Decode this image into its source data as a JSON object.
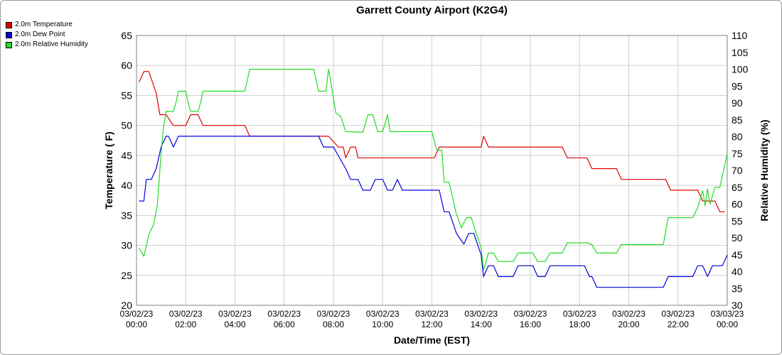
{
  "chart_data": {
    "type": "line",
    "title": "Garrett County Airport (K2G4)",
    "xlabel": "Date/Time (EST)",
    "ylabel_left": "Temperature ( F)",
    "ylabel_right": "Relative Humidity (%)",
    "x_tick_labels": [
      [
        "03/02/23",
        "00:00"
      ],
      [
        "03/02/23",
        "02:00"
      ],
      [
        "03/02/23",
        "04:00"
      ],
      [
        "03/02/23",
        "06:00"
      ],
      [
        "03/02/23",
        "08:00"
      ],
      [
        "03/02/23",
        "10:00"
      ],
      [
        "03/02/23",
        "12:00"
      ],
      [
        "03/02/23",
        "14:00"
      ],
      [
        "03/02/23",
        "16:00"
      ],
      [
        "03/02/23",
        "18:00"
      ],
      [
        "03/02/23",
        "20:00"
      ],
      [
        "03/02/23",
        "22:00"
      ],
      [
        "03/03/23",
        "00:00"
      ]
    ],
    "xlim_hours": [
      0,
      24
    ],
    "ylim_left": [
      20,
      65
    ],
    "yticks_left": [
      20,
      25,
      30,
      35,
      40,
      45,
      50,
      55,
      60,
      65
    ],
    "ylim_right": [
      30,
      110
    ],
    "yticks_right": [
      30,
      35,
      40,
      45,
      50,
      55,
      60,
      65,
      70,
      75,
      80,
      85,
      90,
      95,
      100,
      105,
      110
    ],
    "grid": true,
    "legend_position": "top-left",
    "series": [
      {
        "name": "2.0m Temperature",
        "axis": "left",
        "color": "#e00000",
        "points": [
          [
            0.1,
            57.2
          ],
          [
            0.3,
            59
          ],
          [
            0.5,
            59
          ],
          [
            0.8,
            55.4
          ],
          [
            0.95,
            51.8
          ],
          [
            1.2,
            51.8
          ],
          [
            1.5,
            50
          ],
          [
            2.0,
            50
          ],
          [
            2.2,
            51.8
          ],
          [
            2.5,
            51.8
          ],
          [
            2.7,
            50
          ],
          [
            4.4,
            50
          ],
          [
            4.6,
            48.2
          ],
          [
            7.8,
            48.2
          ],
          [
            8.2,
            46.4
          ],
          [
            8.4,
            46.4
          ],
          [
            8.5,
            44.6
          ],
          [
            8.7,
            46.4
          ],
          [
            8.9,
            46.4
          ],
          [
            9.0,
            44.6
          ],
          [
            12.1,
            44.6
          ],
          [
            12.3,
            46.4
          ],
          [
            14.0,
            46.4
          ],
          [
            14.1,
            48.2
          ],
          [
            14.3,
            46.4
          ],
          [
            17.3,
            46.4
          ],
          [
            17.5,
            44.6
          ],
          [
            18.3,
            44.6
          ],
          [
            18.5,
            42.8
          ],
          [
            19.5,
            42.8
          ],
          [
            19.7,
            41
          ],
          [
            21.5,
            41
          ],
          [
            21.7,
            39.2
          ],
          [
            22.8,
            39.2
          ],
          [
            23.0,
            37.4
          ],
          [
            23.5,
            37.4
          ],
          [
            23.7,
            35.6
          ],
          [
            23.9,
            35.6
          ]
        ]
      },
      {
        "name": "2.0m Dew Point",
        "axis": "left",
        "color": "#0000dd",
        "points": [
          [
            0.1,
            37.4
          ],
          [
            0.3,
            37.4
          ],
          [
            0.4,
            41
          ],
          [
            0.6,
            41
          ],
          [
            0.8,
            42.8
          ],
          [
            1.0,
            46.4
          ],
          [
            1.2,
            48.2
          ],
          [
            1.3,
            48.2
          ],
          [
            1.5,
            46.4
          ],
          [
            1.7,
            48.2
          ],
          [
            7.4,
            48.2
          ],
          [
            7.6,
            46.4
          ],
          [
            8.0,
            46.4
          ],
          [
            8.5,
            42.8
          ],
          [
            8.7,
            41
          ],
          [
            9.0,
            41
          ],
          [
            9.2,
            39.2
          ],
          [
            9.5,
            39.2
          ],
          [
            9.7,
            41
          ],
          [
            10.0,
            41
          ],
          [
            10.2,
            39.2
          ],
          [
            10.4,
            39.2
          ],
          [
            10.6,
            41
          ],
          [
            10.8,
            39.2
          ],
          [
            12.3,
            39.2
          ],
          [
            12.5,
            35.6
          ],
          [
            12.7,
            35.6
          ],
          [
            13.0,
            32
          ],
          [
            13.3,
            30.2
          ],
          [
            13.5,
            32
          ],
          [
            13.7,
            32
          ],
          [
            14.0,
            28.4
          ],
          [
            14.1,
            24.8
          ],
          [
            14.3,
            26.6
          ],
          [
            14.5,
            26.6
          ],
          [
            14.7,
            24.8
          ],
          [
            15.3,
            24.8
          ],
          [
            15.5,
            26.6
          ],
          [
            16.1,
            26.6
          ],
          [
            16.3,
            24.8
          ],
          [
            16.6,
            24.8
          ],
          [
            16.8,
            26.6
          ],
          [
            18.2,
            26.6
          ],
          [
            18.4,
            24.8
          ],
          [
            18.5,
            24.8
          ],
          [
            18.7,
            23
          ],
          [
            21.4,
            23
          ],
          [
            21.6,
            24.8
          ],
          [
            22.6,
            24.8
          ],
          [
            22.8,
            26.6
          ],
          [
            23.0,
            26.6
          ],
          [
            23.2,
            24.8
          ],
          [
            23.4,
            26.6
          ],
          [
            23.8,
            26.6
          ],
          [
            24.0,
            28.4
          ]
        ]
      },
      {
        "name": "2.0m Relative Humidity",
        "axis": "right",
        "color": "#22dd22",
        "points": [
          [
            0.1,
            47
          ],
          [
            0.3,
            44.5
          ],
          [
            0.5,
            51
          ],
          [
            0.7,
            54
          ],
          [
            0.85,
            60
          ],
          [
            1.0,
            75
          ],
          [
            1.1,
            83
          ],
          [
            1.2,
            87.5
          ],
          [
            1.5,
            87.5
          ],
          [
            1.6,
            90
          ],
          [
            1.7,
            93.5
          ],
          [
            2.0,
            93.5
          ],
          [
            2.1,
            90
          ],
          [
            2.2,
            87.5
          ],
          [
            2.5,
            87.5
          ],
          [
            2.6,
            90
          ],
          [
            2.7,
            93.5
          ],
          [
            4.4,
            93.5
          ],
          [
            4.6,
            100
          ],
          [
            7.2,
            100
          ],
          [
            7.4,
            93.5
          ],
          [
            7.7,
            93.5
          ],
          [
            7.8,
            100
          ],
          [
            7.9,
            96
          ],
          [
            8.1,
            87
          ],
          [
            8.3,
            86
          ],
          [
            8.5,
            81.5
          ],
          [
            9.2,
            81.3
          ],
          [
            9.4,
            86.5
          ],
          [
            9.6,
            86.5
          ],
          [
            9.8,
            81.5
          ],
          [
            10.0,
            81.5
          ],
          [
            10.2,
            86.5
          ],
          [
            10.3,
            81.5
          ],
          [
            12.0,
            81.5
          ],
          [
            12.2,
            76
          ],
          [
            12.4,
            76
          ],
          [
            12.5,
            66.5
          ],
          [
            12.7,
            66.5
          ],
          [
            13.0,
            57
          ],
          [
            13.2,
            53
          ],
          [
            13.4,
            56
          ],
          [
            13.6,
            56
          ],
          [
            13.8,
            51.5
          ],
          [
            14.0,
            47
          ],
          [
            14.1,
            40.5
          ],
          [
            14.3,
            45.5
          ],
          [
            14.5,
            45.5
          ],
          [
            14.7,
            43
          ],
          [
            15.3,
            43
          ],
          [
            15.5,
            45.5
          ],
          [
            16.1,
            45.5
          ],
          [
            16.3,
            43
          ],
          [
            16.6,
            43
          ],
          [
            16.8,
            45.5
          ],
          [
            17.3,
            45.5
          ],
          [
            17.5,
            48.5
          ],
          [
            18.3,
            48.5
          ],
          [
            18.5,
            48
          ],
          [
            18.7,
            45.5
          ],
          [
            19.5,
            45.5
          ],
          [
            19.7,
            48
          ],
          [
            21.4,
            48
          ],
          [
            21.6,
            56
          ],
          [
            22.6,
            56
          ],
          [
            22.8,
            59
          ],
          [
            23.0,
            64
          ],
          [
            23.1,
            59.5
          ],
          [
            23.2,
            64.5
          ],
          [
            23.3,
            60
          ],
          [
            23.5,
            65
          ],
          [
            23.7,
            65
          ],
          [
            24.0,
            75
          ]
        ]
      }
    ]
  }
}
